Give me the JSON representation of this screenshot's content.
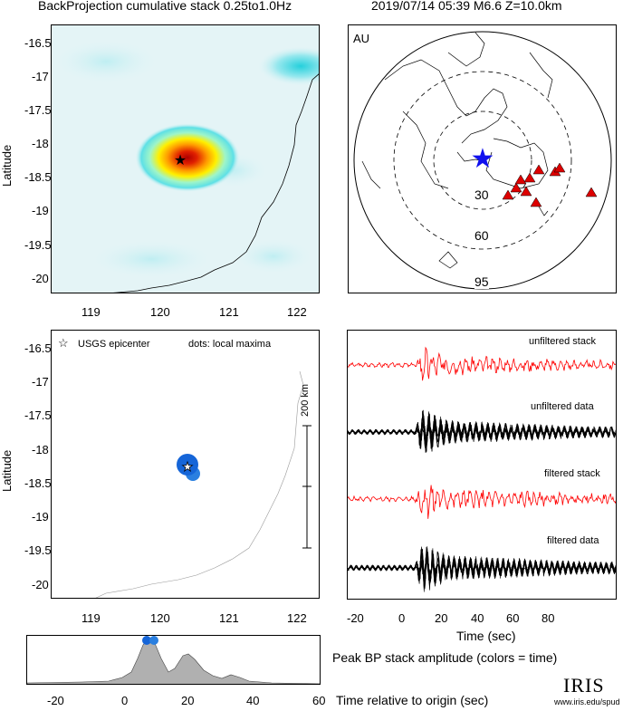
{
  "header": {
    "left_title": "BackProjection cumulative stack 0.25to1.0Hz",
    "right_title": "2019/07/14 05:39  M6.6  Z=10.0km"
  },
  "map_panel": {
    "ylabel": "Latitude",
    "yticks": [
      "-16.5",
      "-17",
      "-17.5",
      "-18",
      "-18.5",
      "-19",
      "-19.5",
      "-20"
    ],
    "xticks": [
      "119",
      "120",
      "121",
      "122"
    ]
  },
  "globe_panel": {
    "region_label": "AU",
    "ring_labels": [
      "30",
      "60",
      "95"
    ]
  },
  "maxima_panel": {
    "legend_star": "USGS epicenter",
    "legend_dots": "dots: local maxima",
    "scale_label": "200 km",
    "ylabel": "Latitude",
    "yticks": [
      "-16.5",
      "-17",
      "-17.5",
      "-18",
      "-18.5",
      "-19",
      "-19.5",
      "-20"
    ],
    "xticks": [
      "119",
      "120",
      "121",
      "122"
    ]
  },
  "traces_panel": {
    "labels": [
      "unfiltered stack",
      "unfiltered data",
      "filtered stack",
      "filtered data"
    ],
    "xticks": [
      "-20",
      "0",
      "20",
      "40",
      "60",
      "80"
    ],
    "xlabel": "Time (sec)"
  },
  "amplitude_panel": {
    "xticks": [
      "-20",
      "0",
      "20",
      "40",
      "60"
    ],
    "title": "Peak BP stack amplitude (colors = time)",
    "xlabel": "Time relative to origin (sec)"
  },
  "logo": {
    "name": "IRIS",
    "url": "www.iris.edu/spud"
  },
  "colors": {
    "heat_center": "#cc0000",
    "heat_mid": "#ffcc00",
    "heat_background": "#e6f5f7",
    "station": "#dd0000",
    "epicenter_star": "#1010ee",
    "maxima": "#2a7fe0",
    "trace_stack": "#ff0000",
    "trace_data": "#000000",
    "amplitude_fill": "#b0b0b0"
  }
}
